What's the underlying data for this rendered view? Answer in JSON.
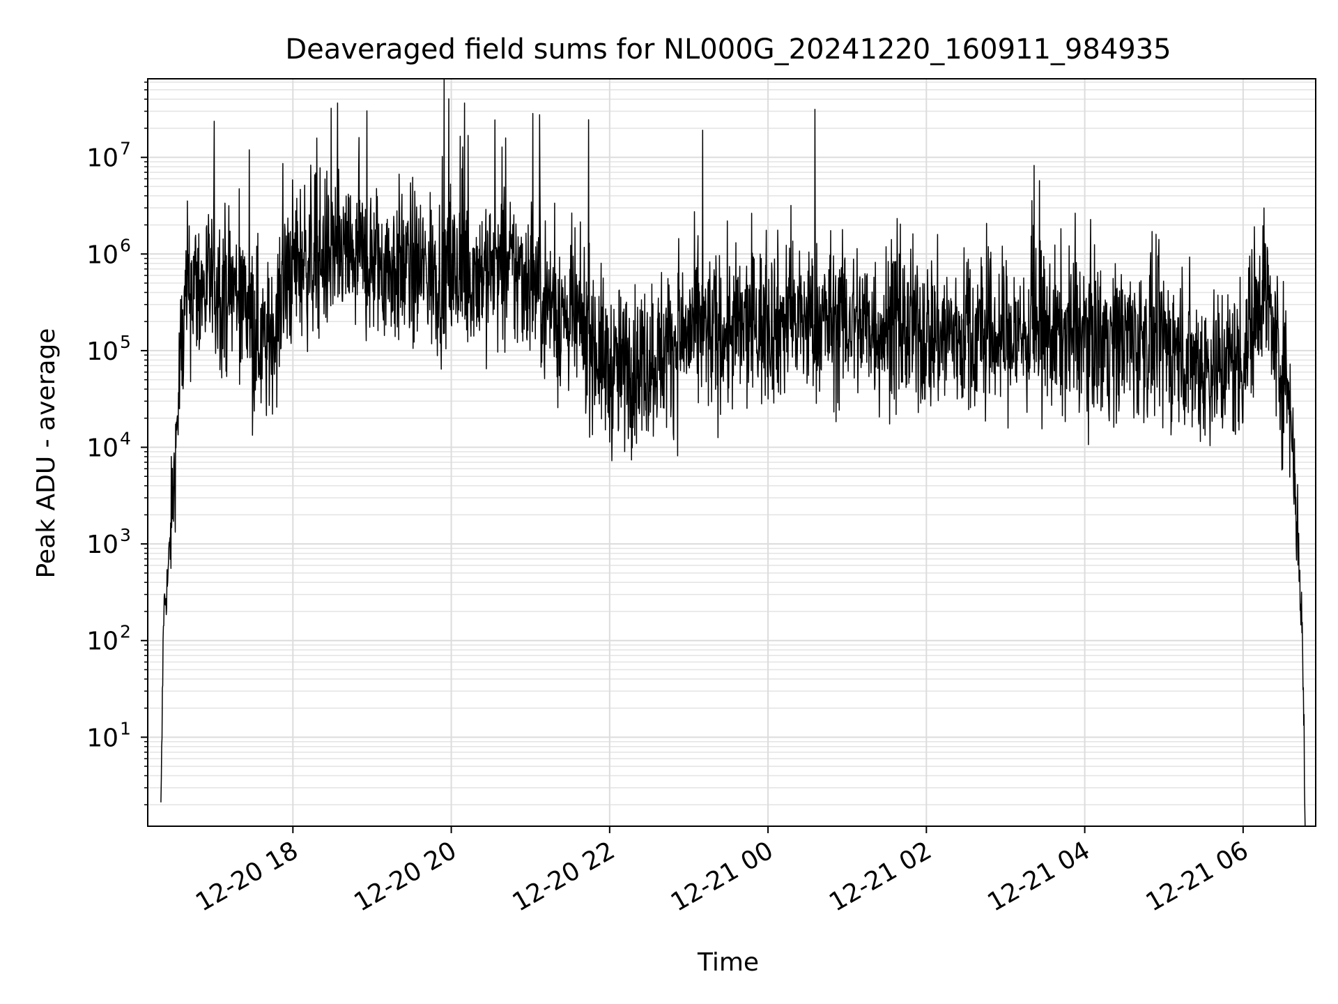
{
  "chart_data": {
    "type": "line",
    "title": "Deaveraged field sums for NL000G_20241220_160911_984935",
    "xlabel": "Time",
    "ylabel": "Peak ADU - average",
    "x_tick_labels": [
      "12-20 18",
      "12-20 20",
      "12-20 22",
      "12-21 00",
      "12-21 02",
      "12-21 04",
      "12-21 06"
    ],
    "x_ticks": [
      "2024-12-20T18:00",
      "2024-12-20T20:00",
      "2024-12-20T22:00",
      "2024-12-21T00:00",
      "2024-12-21T02:00",
      "2024-12-21T04:00",
      "2024-12-21T06:00"
    ],
    "xlim": [
      "2024-12-20T16:10",
      "2024-12-21T06:55"
    ],
    "y_scale": "log",
    "ylim": [
      1.2,
      65000000
    ],
    "y_tick_values": [
      10,
      100,
      1000,
      10000,
      100000,
      1000000,
      10000000
    ],
    "y_tick_labels": [
      {
        "base": "10",
        "exp": "1"
      },
      {
        "base": "10",
        "exp": "2"
      },
      {
        "base": "10",
        "exp": "3"
      },
      {
        "base": "10",
        "exp": "4"
      },
      {
        "base": "10",
        "exp": "5"
      },
      {
        "base": "10",
        "exp": "6"
      },
      {
        "base": "10",
        "exp": "7"
      }
    ],
    "grid": true,
    "line_color": "#000000",
    "series": [
      {
        "x": [
          "2024-12-20T16:20",
          "2024-12-20T16:22",
          "2024-12-20T16:25",
          "2024-12-20T16:30",
          "2024-12-20T16:35",
          "2024-12-20T16:40",
          "2024-12-20T16:45",
          "2024-12-20T16:50",
          "2024-12-20T17:00",
          "2024-12-20T17:20",
          "2024-12-20T17:40",
          "2024-12-20T18:00",
          "2024-12-20T18:30",
          "2024-12-20T19:00",
          "2024-12-20T19:30",
          "2024-12-20T20:00",
          "2024-12-20T20:30",
          "2024-12-20T21:00",
          "2024-12-20T21:20",
          "2024-12-20T21:45",
          "2024-12-20T22:00",
          "2024-12-20T22:30",
          "2024-12-20T23:00",
          "2024-12-20T23:30",
          "2024-12-21T00:00",
          "2024-12-21T00:30",
          "2024-12-21T01:00",
          "2024-12-21T02:00",
          "2024-12-21T03:00",
          "2024-12-21T04:00",
          "2024-12-21T05:00",
          "2024-12-21T05:30",
          "2024-12-21T06:00",
          "2024-12-21T06:15",
          "2024-12-21T06:25",
          "2024-12-21T06:35",
          "2024-12-21T06:40",
          "2024-12-21T06:45",
          "2024-12-21T06:47"
        ],
        "y": [
          1.5,
          200,
          400,
          5000,
          80000,
          400000,
          500000,
          400000,
          500000,
          400000,
          100000,
          800000,
          1000000,
          800000,
          700000,
          600000,
          700000,
          600000,
          250000,
          150000,
          60000,
          80000,
          150000,
          150000,
          200000,
          200000,
          200000,
          150000,
          140000,
          150000,
          120000,
          70000,
          80000,
          600000,
          100000,
          40000,
          3000,
          100,
          1.5
        ]
      }
    ]
  }
}
